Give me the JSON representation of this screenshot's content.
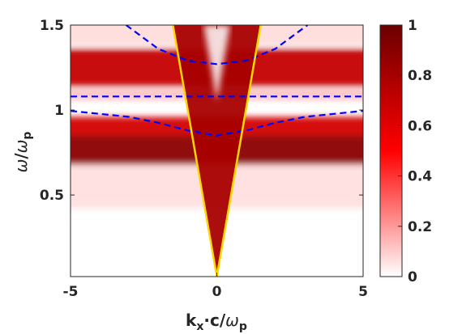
{
  "chart_data": {
    "type": "heatmap",
    "xlabel": {
      "main": "k",
      "sub1": "x",
      "mid": "·c/",
      "omega": "ω",
      "sub2": "p"
    },
    "ylabel": {
      "omega": "ω",
      "slash": "/",
      "omega2": "ω",
      "sub": "p"
    },
    "xlim": [
      -5,
      5
    ],
    "ylim": [
      0.02,
      1.5
    ],
    "xticks": [
      -5,
      0,
      5
    ],
    "xtick_labels": [
      "-5",
      "0",
      "5"
    ],
    "yticks": [
      0.5,
      1,
      1.5
    ],
    "ytick_labels": [
      "0.5",
      "1",
      "1.5"
    ],
    "colorbar": {
      "range": [
        0,
        1
      ],
      "ticks": [
        0,
        0.2,
        0.4,
        0.6,
        0.8,
        1
      ],
      "tick_labels": [
        "0",
        "0.2",
        "0.4",
        "0.6",
        "0.8",
        "1"
      ],
      "colormap": [
        "#ffffff",
        "#ff0000",
        "#6b0000"
      ]
    },
    "light_line": {
      "color": "#ffd700",
      "slope": 1.0,
      "description": "omega = |k_x| c"
    },
    "dashed_curves": [
      {
        "color": "#0000ff",
        "x": [
          -3.1,
          -2,
          -1,
          0,
          1,
          2,
          3.1
        ],
        "y": [
          1.5,
          1.36,
          1.29,
          1.27,
          1.29,
          1.36,
          1.5
        ]
      },
      {
        "color": "#0000ff",
        "x": [
          -5,
          -3,
          -2,
          -1,
          0,
          1,
          2,
          3,
          5
        ],
        "y": [
          0.995,
          0.96,
          0.925,
          0.88,
          0.85,
          0.88,
          0.925,
          0.96,
          0.995
        ]
      },
      {
        "color": "#0000ff",
        "x": [
          -5,
          5
        ],
        "y": [
          1.08,
          1.08
        ]
      }
    ]
  }
}
